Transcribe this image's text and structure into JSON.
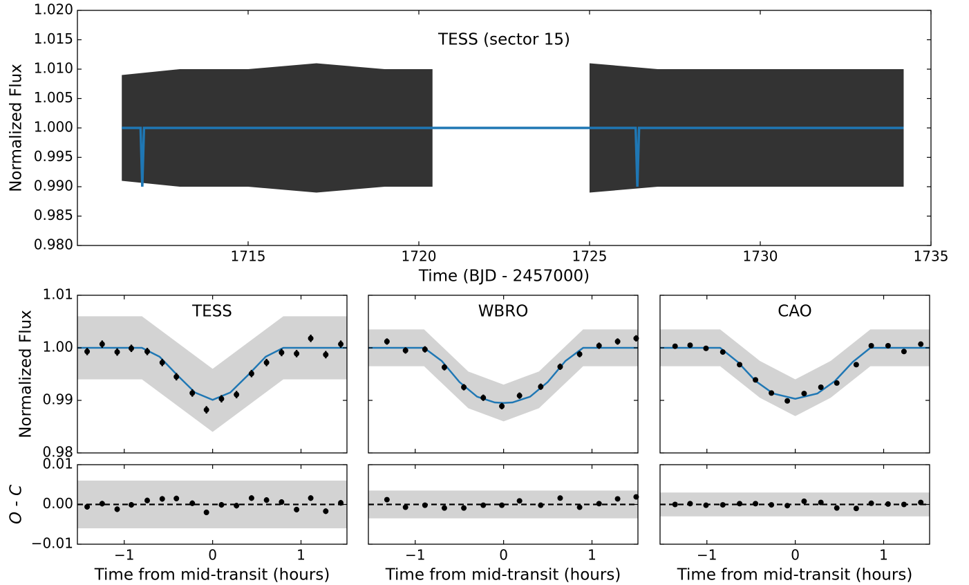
{
  "chart_data": [
    {
      "type": "line",
      "title": "TESS (sector 15)",
      "xlabel": "Time (BJD - 2457000)",
      "ylabel": "Normalized Flux",
      "xlim": [
        1710,
        1735
      ],
      "xticks": [
        1715,
        1720,
        1725,
        1730,
        1735
      ],
      "ylim": [
        0.98,
        1.02
      ],
      "yticks": [
        {
          "value": 0.98,
          "label": "0.980"
        },
        0.985,
        {
          "value": 0.99,
          "label": "0.990"
        },
        0.995,
        {
          "value": 1.0,
          "label": "1.000"
        },
        1.005,
        {
          "value": 1.01,
          "label": "1.010"
        },
        1.015,
        {
          "value": 1.02,
          "label": "1.020"
        }
      ],
      "raw": {
        "color": "#000000",
        "x": [
          1711.3,
          1713,
          1715,
          1717,
          1719,
          1720.4,
          1722.7,
          1725.0,
          1727,
          1729,
          1731,
          1733,
          1734.2
        ],
        "low": [
          0.991,
          0.99,
          0.99,
          0.989,
          0.99,
          0.99,
          null,
          0.989,
          0.99,
          0.99,
          0.99,
          0.99,
          0.99
        ],
        "high": [
          1.009,
          1.01,
          1.01,
          1.011,
          1.01,
          1.01,
          null,
          1.011,
          1.01,
          1.01,
          1.01,
          1.01,
          1.01
        ]
      },
      "model": {
        "color": "#1f77b4",
        "x": [
          1711.3,
          1711.85,
          1711.9,
          1711.95,
          1726.35,
          1726.4,
          1726.45,
          1734.2
        ],
        "values": [
          1.0,
          1.0,
          0.99,
          1.0,
          1.0,
          0.99,
          1.0,
          1.0
        ]
      }
    },
    {
      "type": "line",
      "title": "TESS",
      "ylabel": "Normalized Flux",
      "xlim": [
        -1.53,
        1.52
      ],
      "ylim": [
        0.98,
        1.01
      ],
      "yticks": [
        0.98,
        0.99,
        {
          "value": 1.0,
          "label": "1.00"
        },
        1.01
      ],
      "raw": {
        "color": "#d3d3d3",
        "x": [
          -1.53,
          -0.8,
          -0.4,
          0,
          0.4,
          0.8,
          1.52
        ],
        "low": [
          0.994,
          0.994,
          0.989,
          0.984,
          0.989,
          0.994,
          0.994
        ],
        "high": [
          1.006,
          1.006,
          1.001,
          0.996,
          1.001,
          1.006,
          1.006
        ]
      },
      "model": {
        "color": "#1f77b4",
        "x": [
          -1.53,
          -0.8,
          -0.6,
          -0.4,
          -0.2,
          0,
          0.2,
          0.4,
          0.6,
          0.8,
          1.52
        ],
        "values": [
          1.0,
          1.0,
          0.9983,
          0.9948,
          0.9915,
          0.9901,
          0.9915,
          0.9948,
          0.9983,
          1.0,
          1.0
        ]
      },
      "binned": {
        "color": "#000000",
        "x": [
          -1.42,
          -1.25,
          -1.08,
          -0.92,
          -0.74,
          -0.57,
          -0.41,
          -0.23,
          -0.07,
          0.1,
          0.27,
          0.44,
          0.61,
          0.78,
          0.95,
          1.11,
          1.28,
          1.45
        ],
        "values": [
          0.9993,
          1.0007,
          0.9992,
          0.9999,
          0.9993,
          0.9972,
          0.9945,
          0.9914,
          0.9882,
          0.9903,
          0.9911,
          0.9951,
          0.9972,
          0.9991,
          0.9989,
          1.0018,
          0.9987,
          1.0007
        ],
        "errors": [
          0.0007,
          0.0007,
          0.0007,
          0.0007,
          0.0007,
          0.0007,
          0.0007,
          0.0007,
          0.0007,
          0.0007,
          0.0007,
          0.0007,
          0.0007,
          0.0007,
          0.0007,
          0.0007,
          0.0007,
          0.0007
        ]
      }
    },
    {
      "type": "line",
      "title": "WBRO",
      "xlim": [
        -1.53,
        1.52
      ],
      "ylim": [
        0.98,
        1.01
      ],
      "raw": {
        "color": "#d3d3d3",
        "x": [
          -1.53,
          -0.9,
          -0.4,
          0,
          0.4,
          0.9,
          1.52
        ],
        "low": [
          0.9965,
          0.9965,
          0.9885,
          0.986,
          0.9885,
          0.9965,
          0.9965
        ],
        "high": [
          1.0035,
          1.0035,
          0.9955,
          0.993,
          0.9955,
          1.0035,
          1.0035
        ]
      },
      "model": {
        "color": "#1f77b4",
        "x": [
          -1.53,
          -0.9,
          -0.7,
          -0.5,
          -0.3,
          -0.1,
          0,
          0.1,
          0.3,
          0.5,
          0.7,
          0.9,
          1.52
        ],
        "values": [
          1.0,
          1.0,
          0.9975,
          0.9935,
          0.9907,
          0.9896,
          0.9895,
          0.9896,
          0.9907,
          0.9935,
          0.9975,
          1.0,
          1.0
        ]
      },
      "binned": {
        "color": "#000000",
        "x": [
          -1.32,
          -1.11,
          -0.89,
          -0.67,
          -0.45,
          -0.23,
          -0.02,
          0.18,
          0.42,
          0.64,
          0.86,
          1.08,
          1.29,
          1.5
        ],
        "values": [
          1.0012,
          0.9995,
          0.9997,
          0.9963,
          0.9925,
          0.9905,
          0.9889,
          0.9909,
          0.9926,
          0.9964,
          0.9988,
          1.0004,
          1.0012,
          1.0018
        ],
        "errors": [
          0.0006,
          0.0006,
          0.0006,
          0.0006,
          0.0006,
          0.0006,
          0.0006,
          0.0006,
          0.0006,
          0.0006,
          0.0006,
          0.0006,
          0.0006,
          0.0006
        ]
      }
    },
    {
      "type": "line",
      "title": "CAO",
      "xlim": [
        -1.53,
        1.52
      ],
      "ylim": [
        0.98,
        1.01
      ],
      "raw": {
        "color": "#d3d3d3",
        "x": [
          -1.53,
          -0.85,
          -0.4,
          0,
          0.4,
          0.85,
          1.52
        ],
        "low": [
          0.9965,
          0.9965,
          0.9905,
          0.987,
          0.9905,
          0.9965,
          0.9965
        ],
        "high": [
          1.0035,
          1.0035,
          0.9975,
          0.994,
          0.9975,
          1.0035,
          1.0035
        ]
      },
      "model": {
        "color": "#1f77b4",
        "x": [
          -1.53,
          -0.85,
          -0.65,
          -0.45,
          -0.25,
          0,
          0.25,
          0.45,
          0.65,
          0.85,
          1.52
        ],
        "values": [
          1.0,
          1.0,
          0.9973,
          0.9937,
          0.9913,
          0.9903,
          0.9913,
          0.9937,
          0.9973,
          1.0,
          1.0
        ]
      },
      "binned": {
        "color": "#000000",
        "x": [
          -1.36,
          -1.19,
          -1.01,
          -0.82,
          -0.63,
          -0.45,
          -0.27,
          -0.09,
          0.1,
          0.29,
          0.47,
          0.69,
          0.86,
          1.05,
          1.23,
          1.42
        ],
        "values": [
          1.0003,
          1.0005,
          0.9999,
          0.9992,
          0.9968,
          0.9939,
          0.9914,
          0.9899,
          0.9913,
          0.9925,
          0.9933,
          0.9968,
          1.0004,
          1.0004,
          0.9993,
          1.0007
        ]
      }
    },
    {
      "type": "line",
      "ylabel": "O - C",
      "xlabel": "Time from mid-transit (hours)",
      "xlim": [
        -1.53,
        1.52
      ],
      "ylim": [
        -0.01,
        0.01
      ],
      "xticks": [
        {
          "value": -1,
          "label": "−1"
        },
        0,
        1
      ],
      "yticks": [
        {
          "value": -0.01,
          "label": "−0.01"
        },
        {
          "value": 0,
          "label": "0.00"
        },
        0.01
      ],
      "hlines": [
        0
      ],
      "raw": {
        "color": "#d3d3d3",
        "x": [
          -1.53,
          1.52
        ],
        "low": [
          -0.006,
          -0.006
        ],
        "high": [
          0.006,
          0.006
        ]
      },
      "binned": {
        "color": "#000000",
        "x": [
          -1.42,
          -1.25,
          -1.08,
          -0.92,
          -0.74,
          -0.57,
          -0.41,
          -0.23,
          -0.07,
          0.1,
          0.27,
          0.44,
          0.61,
          0.78,
          0.95,
          1.11,
          1.28,
          1.45
        ],
        "values": [
          -0.0006,
          0.0002,
          -0.0012,
          -0.0001,
          0.001,
          0.0014,
          0.0015,
          0.0003,
          -0.002,
          -0.0001,
          -0.0003,
          0.0016,
          0.0011,
          0.0006,
          -0.0013,
          0.0016,
          -0.0017,
          0.0004
        ],
        "errors": [
          0.0007,
          0.0007,
          0.0007,
          0.0007,
          0.0007,
          0.0007,
          0.0007,
          0.0007,
          0.0007,
          0.0007,
          0.0007,
          0.0007,
          0.0007,
          0.0007,
          0.0007,
          0.0007,
          0.0007,
          0.0007
        ]
      }
    },
    {
      "type": "line",
      "xlabel": "Time from mid-transit (hours)",
      "xlim": [
        -1.53,
        1.52
      ],
      "ylim": [
        -0.01,
        0.01
      ],
      "xticks": [
        {
          "value": -1,
          "label": "−1"
        },
        0,
        1
      ],
      "hlines": [
        0
      ],
      "raw": {
        "color": "#d3d3d3",
        "x": [
          -1.53,
          1.52
        ],
        "low": [
          -0.0035,
          -0.0035
        ],
        "high": [
          0.0035,
          0.0035
        ]
      },
      "binned": {
        "color": "#000000",
        "x": [
          -1.32,
          -1.11,
          -0.89,
          -0.67,
          -0.45,
          -0.23,
          -0.02,
          0.18,
          0.42,
          0.64,
          0.86,
          1.08,
          1.29,
          1.5
        ],
        "values": [
          0.0012,
          -0.0007,
          -0.0002,
          -0.0009,
          -0.0009,
          -0.0002,
          -0.0002,
          0.0009,
          -0.0002,
          0.0016,
          -0.0007,
          0.0002,
          0.0014,
          0.0019
        ],
        "errors": [
          0.0006,
          0.0006,
          0.0006,
          0.0006,
          0.0006,
          0.0006,
          0.0006,
          0.0006,
          0.0006,
          0.0006,
          0.0006,
          0.0006,
          0.0006,
          0.0006
        ]
      }
    },
    {
      "type": "line",
      "xlabel": "Time from mid-transit (hours)",
      "xlim": [
        -1.53,
        1.52
      ],
      "ylim": [
        -0.01,
        0.01
      ],
      "xticks": [
        {
          "value": -1,
          "label": "−1"
        },
        0,
        1
      ],
      "hlines": [
        0
      ],
      "raw": {
        "color": "#d3d3d3",
        "x": [
          -1.53,
          1.52
        ],
        "low": [
          -0.003,
          -0.003
        ],
        "high": [
          0.003,
          0.003
        ]
      },
      "binned": {
        "color": "#000000",
        "x": [
          -1.36,
          -1.19,
          -1.01,
          -0.82,
          -0.63,
          -0.45,
          -0.27,
          -0.09,
          0.1,
          0.29,
          0.47,
          0.69,
          0.86,
          1.05,
          1.23,
          1.42
        ],
        "values": [
          0,
          0.0002,
          -0.0002,
          -0.0001,
          0.0002,
          0.0002,
          -0.0001,
          -0.0003,
          0.0008,
          0.0005,
          -0.0009,
          -0.001,
          0.0003,
          0.0001,
          0,
          0.0005
        ]
      }
    }
  ]
}
